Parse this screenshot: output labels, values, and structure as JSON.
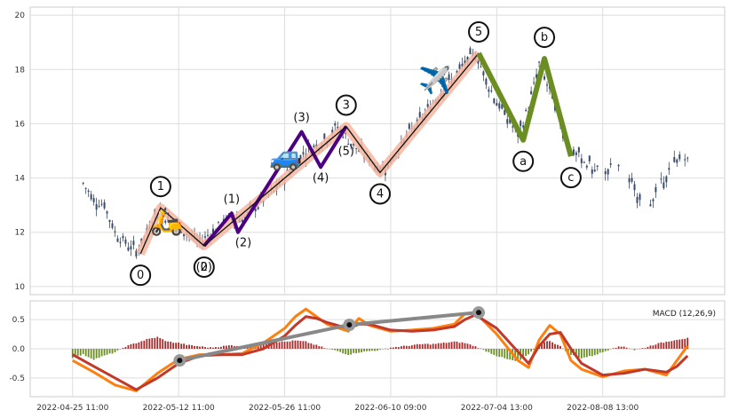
{
  "chart_data": {
    "type": "candlestick-elliott-wave",
    "grid": true,
    "price_panel": {
      "ylim": [
        9.7,
        20.3
      ],
      "yticks": [
        10,
        12,
        14,
        16,
        18,
        20
      ],
      "impulse_points": [
        {
          "label": "0",
          "t": 6.4,
          "price": 11.2
        },
        {
          "label": "1",
          "t": 8.3,
          "price": 12.9
        },
        {
          "label": "2",
          "t": 12.4,
          "price": 11.5
        },
        {
          "label": "3",
          "t": 25.8,
          "price": 15.9
        },
        {
          "label": "4",
          "t": 29.0,
          "price": 14.2
        },
        {
          "label": "5",
          "t": 38.3,
          "price": 18.6
        }
      ],
      "sub_wave_points": [
        {
          "label": "(0)",
          "t": 12.4,
          "price": 11.5
        },
        {
          "label": "(1)",
          "t": 15.0,
          "price": 12.7
        },
        {
          "label": "(2)",
          "t": 15.6,
          "price": 12.0
        },
        {
          "label": "(3)",
          "t": 21.6,
          "price": 15.7
        },
        {
          "label": "(4)",
          "t": 23.4,
          "price": 14.4
        },
        {
          "label": "(5)",
          "t": 25.8,
          "price": 15.9
        }
      ],
      "correction_points": [
        {
          "label": "5",
          "t": 38.3,
          "price": 18.6
        },
        {
          "label": "a",
          "t": 42.5,
          "price": 15.4
        },
        {
          "label": "b",
          "t": 44.5,
          "price": 18.4
        },
        {
          "label": "c",
          "t": 47.0,
          "price": 14.8
        }
      ],
      "icons": [
        {
          "icon": "scooter-icon",
          "glyph": "🛵",
          "t": 8.9,
          "price": 12.4
        },
        {
          "icon": "car-icon",
          "glyph": "🚙",
          "t": 20.1,
          "price": 14.8
        },
        {
          "icon": "airplane-icon",
          "glyph": "✈️",
          "t": 34.2,
          "price": 17.6
        }
      ]
    },
    "macd_panel": {
      "label": "MACD (12,26,9)",
      "ylim": [
        -0.82,
        0.82
      ],
      "yticks": [
        -0.5,
        0.0,
        0.5
      ],
      "trend_points": [
        {
          "t": 10.1,
          "value": -0.2
        },
        {
          "t": 26.1,
          "value": 0.41
        },
        {
          "t": 38.3,
          "value": 0.62
        }
      ],
      "macd_line": [
        [
          0,
          -0.2
        ],
        [
          2,
          -0.4
        ],
        [
          4,
          -0.62
        ],
        [
          6,
          -0.72
        ],
        [
          8,
          -0.42
        ],
        [
          10,
          -0.18
        ],
        [
          12,
          -0.1
        ],
        [
          14,
          -0.1
        ],
        [
          16,
          -0.08
        ],
        [
          18,
          0.1
        ],
        [
          20,
          0.35
        ],
        [
          21,
          0.55
        ],
        [
          22,
          0.68
        ],
        [
          23,
          0.55
        ],
        [
          24,
          0.42
        ],
        [
          26,
          0.3
        ],
        [
          27,
          0.52
        ],
        [
          28,
          0.4
        ],
        [
          30,
          0.3
        ],
        [
          32,
          0.32
        ],
        [
          34,
          0.35
        ],
        [
          36,
          0.42
        ],
        [
          37,
          0.6
        ],
        [
          38,
          0.62
        ],
        [
          40,
          0.25
        ],
        [
          42,
          -0.2
        ],
        [
          43,
          -0.32
        ],
        [
          44,
          0.15
        ],
        [
          45,
          0.4
        ],
        [
          46,
          0.25
        ],
        [
          47,
          -0.2
        ],
        [
          48,
          -0.35
        ],
        [
          50,
          -0.48
        ],
        [
          52,
          -0.38
        ],
        [
          54,
          -0.35
        ],
        [
          56,
          -0.45
        ],
        [
          57,
          -0.2
        ],
        [
          58,
          0.05
        ]
      ],
      "signal_line": [
        [
          0,
          -0.1
        ],
        [
          2,
          -0.3
        ],
        [
          4,
          -0.5
        ],
        [
          6,
          -0.7
        ],
        [
          8,
          -0.5
        ],
        [
          10,
          -0.25
        ],
        [
          12,
          -0.12
        ],
        [
          14,
          -0.1
        ],
        [
          16,
          -0.1
        ],
        [
          18,
          0.0
        ],
        [
          20,
          0.22
        ],
        [
          21,
          0.4
        ],
        [
          22,
          0.55
        ],
        [
          23,
          0.52
        ],
        [
          24,
          0.45
        ],
        [
          26,
          0.35
        ],
        [
          27,
          0.42
        ],
        [
          28,
          0.42
        ],
        [
          30,
          0.32
        ],
        [
          32,
          0.3
        ],
        [
          34,
          0.32
        ],
        [
          36,
          0.38
        ],
        [
          37,
          0.5
        ],
        [
          38,
          0.58
        ],
        [
          40,
          0.35
        ],
        [
          42,
          -0.05
        ],
        [
          43,
          -0.25
        ],
        [
          44,
          0.05
        ],
        [
          45,
          0.25
        ],
        [
          46,
          0.28
        ],
        [
          47,
          0.0
        ],
        [
          48,
          -0.25
        ],
        [
          50,
          -0.45
        ],
        [
          52,
          -0.42
        ],
        [
          54,
          -0.35
        ],
        [
          56,
          -0.4
        ],
        [
          57,
          -0.3
        ],
        [
          58,
          -0.12
        ]
      ]
    },
    "x_tick_labels": [
      {
        "t": 0,
        "label": "2022-04-25 11:00"
      },
      {
        "t": 10,
        "label": "2022-05-12 11:00"
      },
      {
        "t": 20,
        "label": "2022-05-26 11:00"
      },
      {
        "t": 30,
        "label": "2022-06-10 09:00"
      },
      {
        "t": 40,
        "label": "2022-07-04 13:00"
      },
      {
        "t": 50,
        "label": "2022-08-08 13:00"
      }
    ],
    "price_series": [
      [
        1,
        13.8
      ],
      [
        2,
        13.2
      ],
      [
        3,
        13.0
      ],
      [
        4,
        12.0
      ],
      [
        5,
        11.6
      ],
      [
        6,
        11.3
      ],
      [
        7,
        12.0
      ],
      [
        8,
        12.8
      ],
      [
        9,
        12.5
      ],
      [
        10,
        12.2
      ],
      [
        11,
        11.9
      ],
      [
        12,
        11.6
      ],
      [
        13,
        12.0
      ],
      [
        14,
        12.3
      ],
      [
        15,
        12.6
      ],
      [
        16,
        12.5
      ],
      [
        17,
        12.8
      ],
      [
        18,
        13.2
      ],
      [
        19,
        13.5
      ],
      [
        20,
        14.0
      ],
      [
        21,
        14.6
      ],
      [
        22,
        15.0
      ],
      [
        23,
        15.2
      ],
      [
        24,
        15.5
      ],
      [
        25,
        15.9
      ],
      [
        26,
        15.4
      ],
      [
        27,
        15.0
      ],
      [
        28,
        14.7
      ],
      [
        29,
        14.3
      ],
      [
        30,
        14.6
      ],
      [
        31,
        15.2
      ],
      [
        32,
        15.8
      ],
      [
        33,
        16.2
      ],
      [
        34,
        16.8
      ],
      [
        35,
        17.3
      ],
      [
        36,
        17.7
      ],
      [
        37,
        18.2
      ],
      [
        38,
        18.6
      ],
      [
        39,
        17.6
      ],
      [
        40,
        16.8
      ],
      [
        41,
        16.2
      ],
      [
        42,
        15.6
      ],
      [
        43,
        16.6
      ],
      [
        44,
        18.2
      ],
      [
        45,
        17.2
      ],
      [
        46,
        16.0
      ],
      [
        47,
        15.0
      ],
      [
        48,
        14.7
      ],
      [
        49,
        14.4
      ],
      [
        50,
        14.2
      ],
      [
        51,
        14.5
      ],
      [
        52,
        14.1
      ],
      [
        53,
        13.6
      ],
      [
        54,
        13.0
      ],
      [
        55,
        13.4
      ],
      [
        56,
        14.2
      ],
      [
        57,
        14.6
      ],
      [
        58,
        14.9
      ]
    ],
    "histogram_series": [
      [
        0,
        -0.15
      ],
      [
        1,
        -0.1
      ],
      [
        2,
        -0.18
      ],
      [
        3,
        -0.12
      ],
      [
        4,
        -0.06
      ],
      [
        5,
        0.04
      ],
      [
        6,
        0.1
      ],
      [
        7,
        0.16
      ],
      [
        8,
        0.2
      ],
      [
        9,
        0.12
      ],
      [
        10,
        0.1
      ],
      [
        11,
        0.06
      ],
      [
        12,
        0.04
      ],
      [
        13,
        0.02
      ],
      [
        14,
        0.04
      ],
      [
        15,
        0.06
      ],
      [
        16,
        0.04
      ],
      [
        17,
        0.08
      ],
      [
        18,
        0.1
      ],
      [
        19,
        0.12
      ],
      [
        20,
        0.12
      ],
      [
        21,
        0.14
      ],
      [
        22,
        0.12
      ],
      [
        23,
        0.06
      ],
      [
        24,
        0.0
      ],
      [
        25,
        -0.04
      ],
      [
        26,
        -0.1
      ],
      [
        27,
        -0.06
      ],
      [
        28,
        -0.04
      ],
      [
        29,
        -0.02
      ],
      [
        30,
        0.02
      ],
      [
        31,
        0.04
      ],
      [
        32,
        0.06
      ],
      [
        33,
        0.08
      ],
      [
        34,
        0.08
      ],
      [
        35,
        0.1
      ],
      [
        36,
        0.12
      ],
      [
        37,
        0.1
      ],
      [
        38,
        0.04
      ],
      [
        39,
        -0.04
      ],
      [
        40,
        -0.12
      ],
      [
        41,
        -0.18
      ],
      [
        42,
        -0.22
      ],
      [
        43,
        -0.1
      ],
      [
        44,
        0.08
      ],
      [
        45,
        0.14
      ],
      [
        46,
        0.04
      ],
      [
        47,
        -0.1
      ],
      [
        48,
        -0.16
      ],
      [
        49,
        -0.12
      ],
      [
        50,
        -0.06
      ],
      [
        51,
        0.02
      ],
      [
        52,
        0.04
      ],
      [
        53,
        -0.02
      ],
      [
        54,
        0.02
      ],
      [
        55,
        0.08
      ],
      [
        56,
        0.12
      ],
      [
        57,
        0.16
      ],
      [
        58,
        0.18
      ]
    ],
    "colors": {
      "candle": "#3a4a6a",
      "impulse_glow": "#f4b6a0",
      "impulse_line": "#111111",
      "sub_wave": "#4b0082",
      "correction": "#6b8e23",
      "trend": "#888888",
      "macd": "#ff7f0e",
      "signal": "#c0392b",
      "hist_pos": "#a52a2a",
      "hist_neg": "#6b8e23"
    }
  }
}
